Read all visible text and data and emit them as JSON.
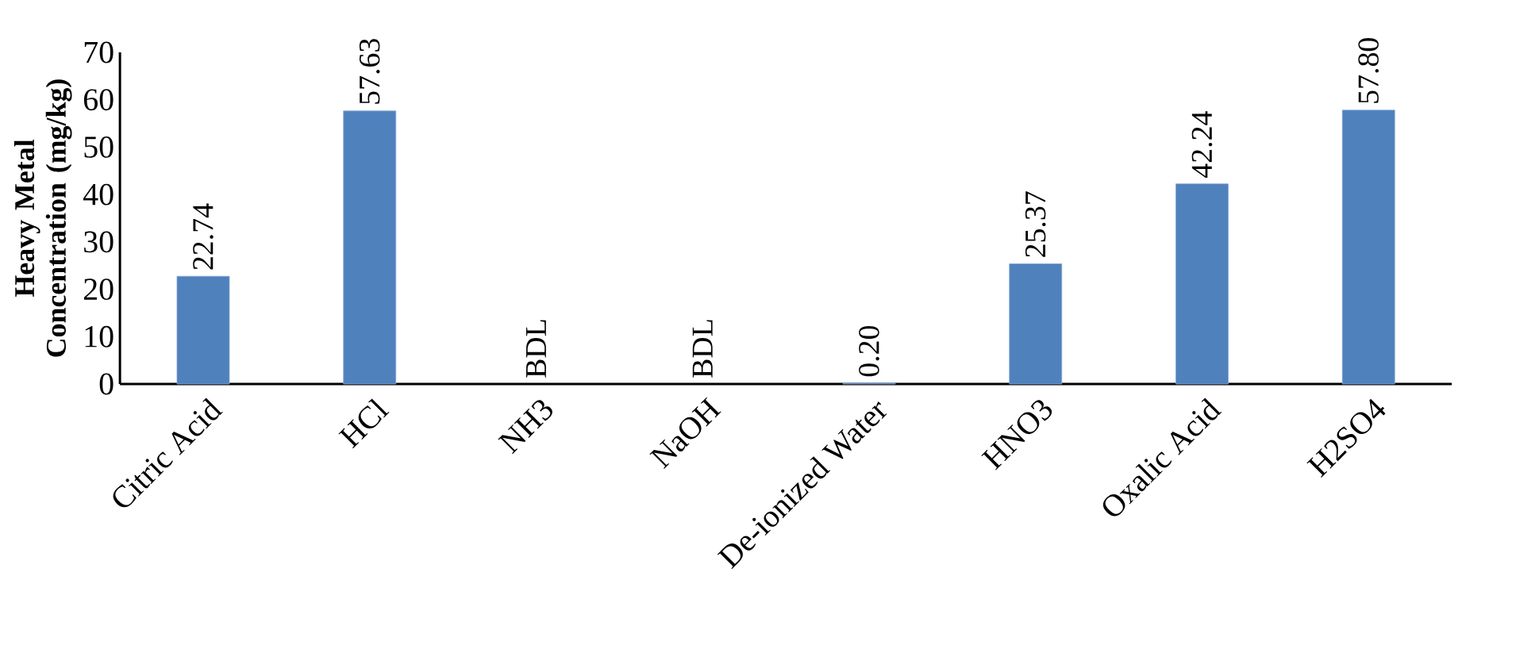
{
  "chart_data": {
    "type": "bar",
    "ylabel": "Heavy Metal Concentration (mg/kg)",
    "categories": [
      "Citric Acid",
      "HCl",
      "NH3",
      "NaOH",
      "De-ionized Water",
      "HNO3",
      "Oxalic Acid",
      "H2SO4"
    ],
    "values": [
      22.74,
      57.63,
      null,
      null,
      0.2,
      25.37,
      42.24,
      57.8
    ],
    "value_labels": [
      "22.74",
      "57.63",
      "BDL",
      "BDL",
      "0.20",
      "25.37",
      "42.24",
      "57.80"
    ],
    "color": "#4f81bd",
    "ylim": [
      0,
      70
    ],
    "yticks": [
      0,
      10,
      20,
      30,
      40,
      50,
      60,
      70
    ],
    "grid": false
  }
}
